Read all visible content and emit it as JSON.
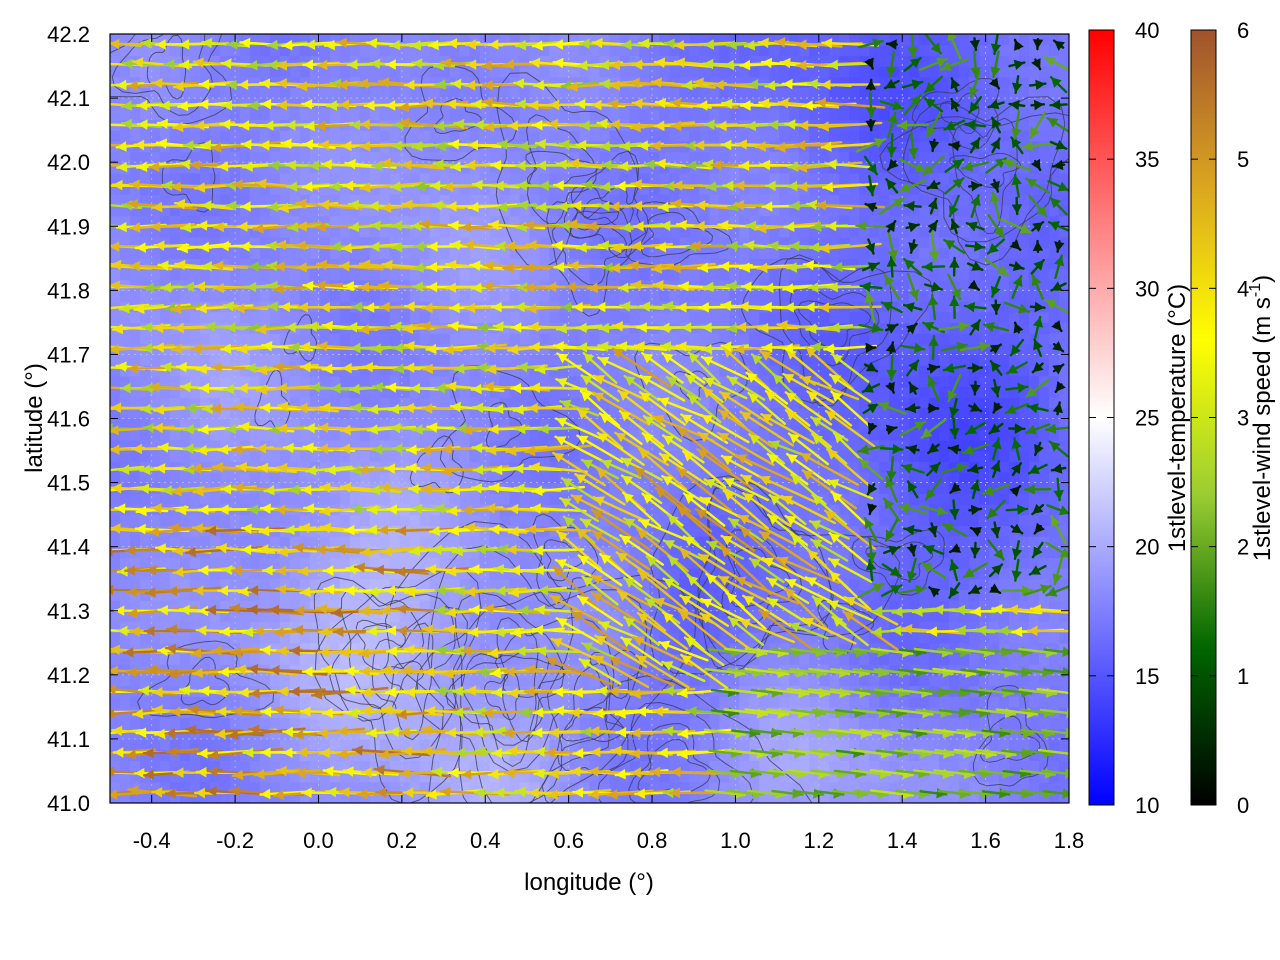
{
  "chart_data": {
    "type": "heatmap",
    "overlay": "wind-vector-field-with-contours",
    "xlabel": "longitude (°)",
    "ylabel": "latitude (°)",
    "xlim": [
      -0.5,
      1.8
    ],
    "ylim": [
      41.0,
      42.2
    ],
    "x_ticks": [
      "-0.4",
      "-0.2",
      "0.0",
      "0.2",
      "0.4",
      "0.6",
      "0.8",
      "1.0",
      "1.2",
      "1.4",
      "1.6",
      "1.8"
    ],
    "y_ticks": [
      "41.0",
      "41.1",
      "41.2",
      "41.3",
      "41.4",
      "41.5",
      "41.6",
      "41.7",
      "41.8",
      "41.9",
      "42.0",
      "42.1",
      "42.2"
    ],
    "grid": true,
    "colorbars": [
      {
        "label": "1stlevel-temperature (°C)",
        "range": [
          10,
          40
        ],
        "ticks": [
          "10",
          "15",
          "20",
          "25",
          "30",
          "35",
          "40"
        ],
        "colors": [
          "#0000ff",
          "#ffffff",
          "#ff0000"
        ]
      },
      {
        "label": "1stlevel-wind speed (m s-1)",
        "range": [
          0,
          6
        ],
        "ticks": [
          "0",
          "1",
          "2",
          "3",
          "4",
          "5",
          "6"
        ],
        "colors": [
          "#000000",
          "#006400",
          "#9acd32",
          "#ffff00",
          "#daa520",
          "#a0522d"
        ]
      }
    ],
    "fields": {
      "temperature_typical": "14-22 °C, warmer (near white) in west and south, coolest (deep blue) in north-east",
      "wind_regimes": [
        {
          "region": "west of 0.6° lon",
          "direction": "westward",
          "speed_range": [
            2.5,
            6
          ]
        },
        {
          "region": "0.6°–1.3° lon, 41.2°–41.7° lat",
          "direction": "north-westward",
          "speed_range": [
            3,
            5.5
          ]
        },
        {
          "region": "east of 1.3° lon, north of 41.3° lat",
          "direction": "variable",
          "speed_range": [
            0.3,
            2
          ]
        },
        {
          "region": "south-east corner, below 41.25° lat",
          "direction": "eastward",
          "speed_range": [
            1.5,
            3
          ]
        }
      ]
    }
  }
}
